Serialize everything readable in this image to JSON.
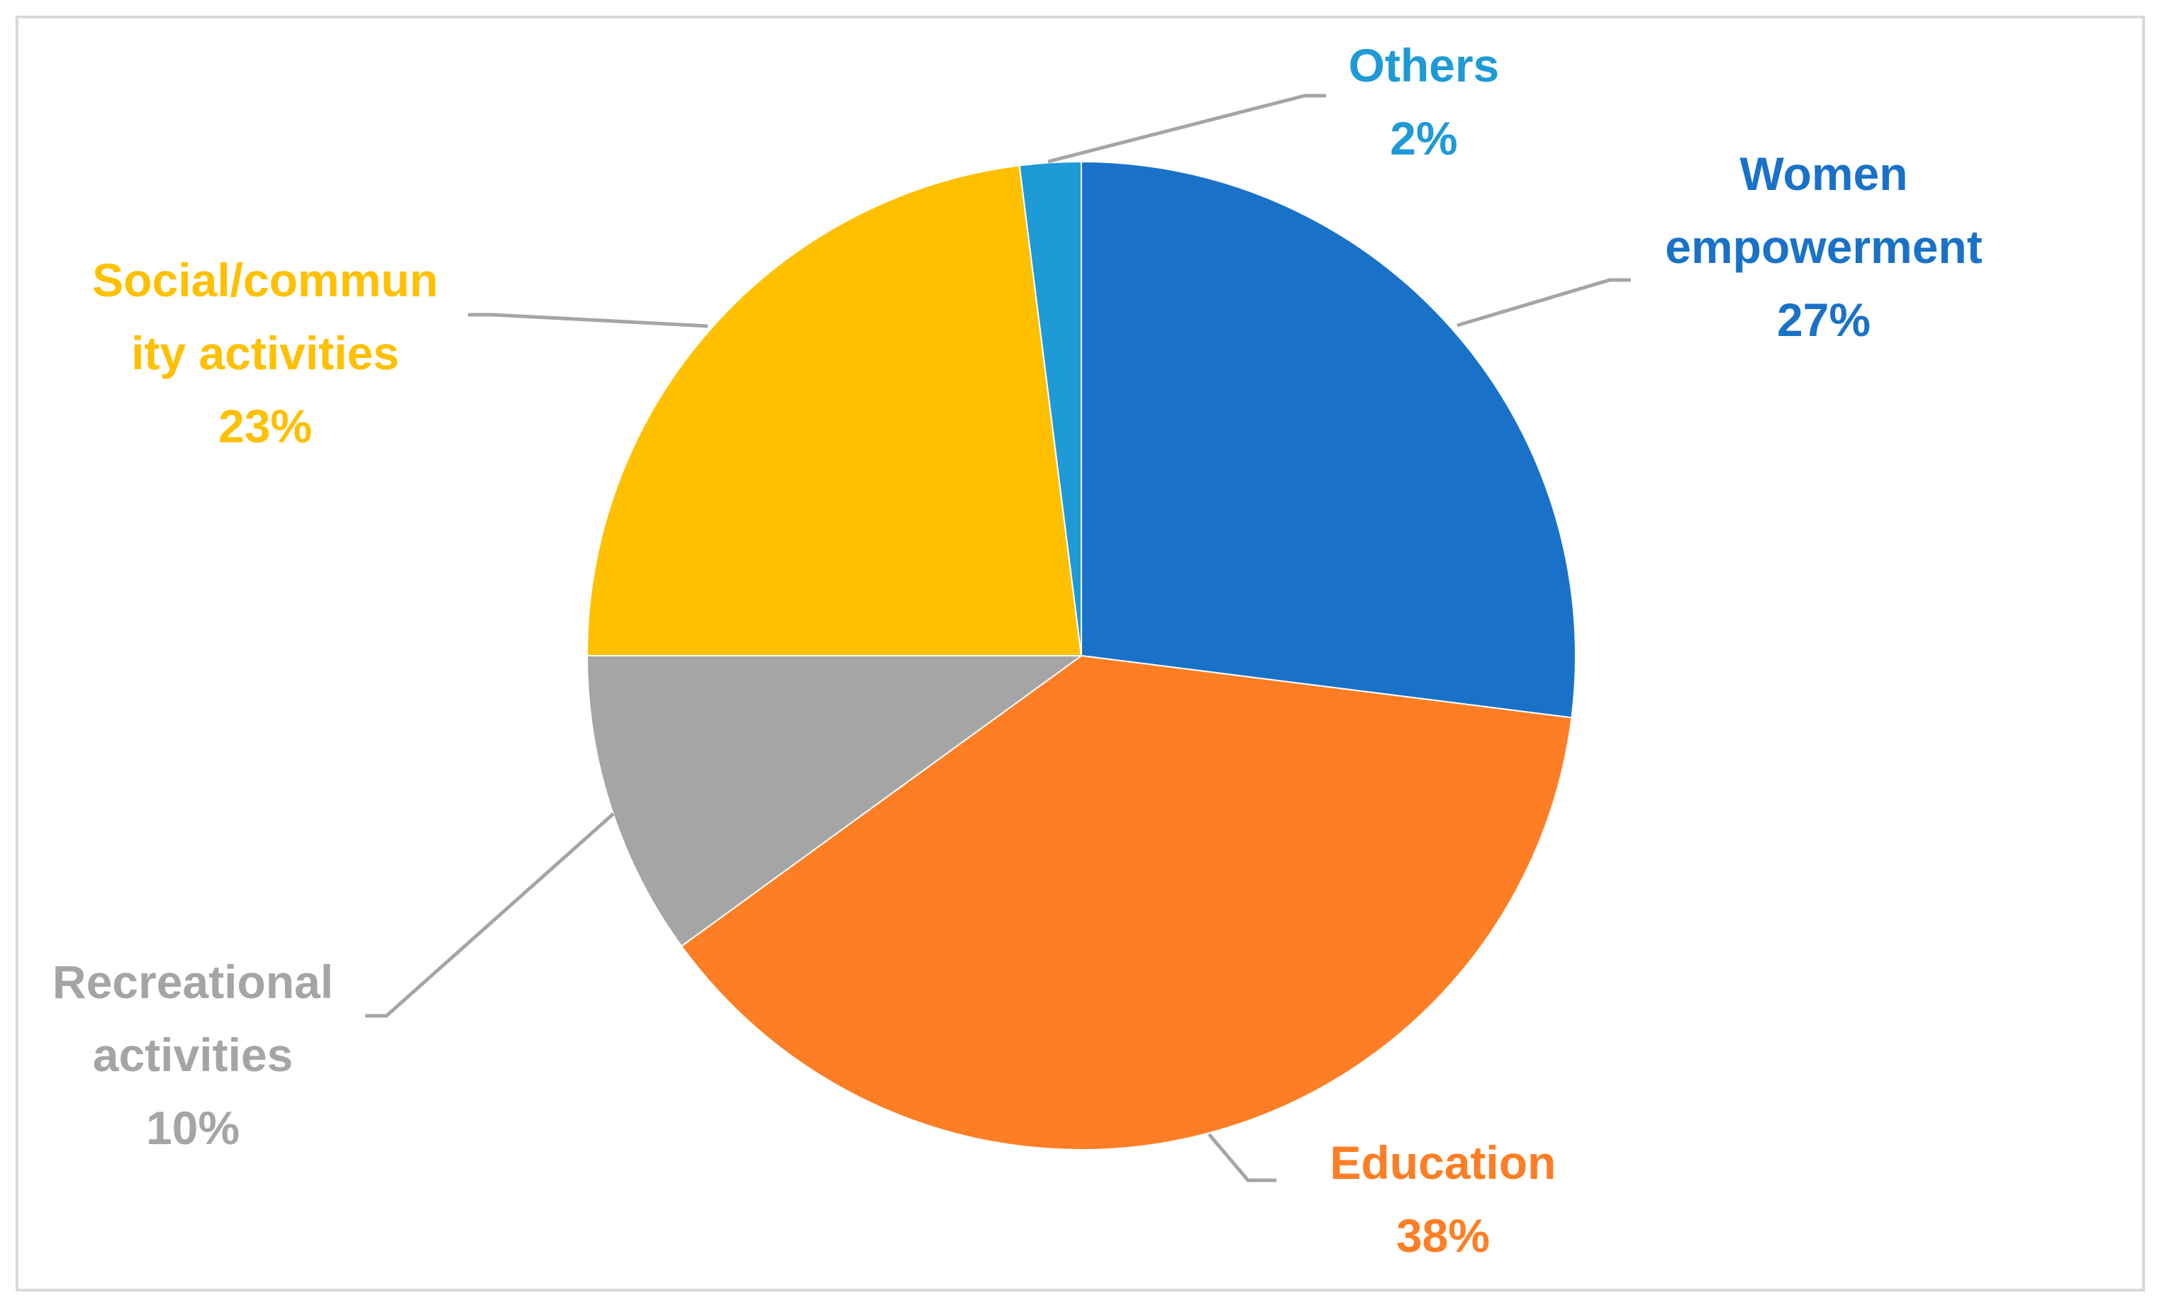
{
  "chart_data": {
    "type": "pie",
    "title": "",
    "start_angle_deg": 0,
    "direction": "clockwise",
    "slices": [
      {
        "key": "women",
        "label_lines": [
          "Women",
          "empowerment"
        ],
        "value": 27,
        "value_label": "27%",
        "color": "#1a72c8"
      },
      {
        "key": "education",
        "label_lines": [
          "Education"
        ],
        "value": 38,
        "value_label": "38%",
        "color": "#fd7e24"
      },
      {
        "key": "recreational",
        "label_lines": [
          "Recreational",
          "activities"
        ],
        "value": 10,
        "value_label": "10%",
        "color": "#a5a5a5"
      },
      {
        "key": "social",
        "label_lines": [
          "Social/commun",
          "ity activities"
        ],
        "value": 23,
        "value_label": "23%",
        "color": "#ffc000"
      },
      {
        "key": "others",
        "label_lines": [
          "Others"
        ],
        "value": 2,
        "value_label": "2%",
        "color": "#1e9ad6"
      }
    ],
    "leader_line_color": "#a5a5a5",
    "legend": "none"
  }
}
